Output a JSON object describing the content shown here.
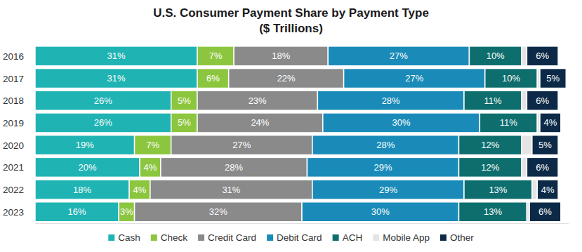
{
  "chart_data": {
    "type": "bar",
    "orientation": "horizontal",
    "stacked": true,
    "data_labels": true,
    "tick_labels": "y",
    "grid": false,
    "title": "U.S. Consumer Payment Share by Payment Type",
    "subtitle": "($ Trillions)",
    "legend": "bottom",
    "xlim": [
      0,
      102
    ],
    "categories": [
      "2016",
      "2017",
      "2018",
      "2019",
      "2020",
      "2021",
      "2022",
      "2023"
    ],
    "series": [
      {
        "name": "Cash",
        "color": "#1fb3b3",
        "values": [
          31,
          31,
          26,
          26,
          19,
          20,
          18,
          16
        ],
        "value_labels": [
          "31%",
          "31%",
          "26%",
          "26%",
          "19%",
          "20%",
          "18%",
          "16%"
        ]
      },
      {
        "name": "Check",
        "color": "#8cc63f",
        "values": [
          7,
          6,
          5,
          5,
          7,
          4,
          4,
          3
        ],
        "value_labels": [
          "7%",
          "6%",
          "5%",
          "5%",
          "7%",
          "4%",
          "4%",
          "3%"
        ]
      },
      {
        "name": "Credit Card",
        "color": "#8a8a8a",
        "values": [
          18,
          22,
          23,
          24,
          27,
          28,
          31,
          32
        ],
        "value_labels": [
          "18%",
          "22%",
          "23%",
          "24%",
          "27%",
          "28%",
          "31%",
          "32%"
        ]
      },
      {
        "name": "Debit Card",
        "color": "#1a8bb9",
        "values": [
          27,
          27,
          28,
          30,
          28,
          29,
          29,
          30
        ],
        "value_labels": [
          "27%",
          "27%",
          "28%",
          "30%",
          "28%",
          "29%",
          "29%",
          "30%"
        ]
      },
      {
        "name": "ACH",
        "color": "#0e6e6e",
        "values": [
          10,
          10,
          11,
          11,
          12,
          12,
          13,
          13
        ],
        "value_labels": [
          "10%",
          "10%",
          "11%",
          "11%",
          "12%",
          "12%",
          "13%",
          "13%"
        ]
      },
      {
        "name": "Mobile App",
        "color": "#e4e4e4",
        "data_labels": false,
        "values": [
          1,
          0.5,
          1,
          0.5,
          2,
          1,
          1,
          0.5
        ]
      },
      {
        "name": "Other",
        "color": "#0c2a48",
        "values": [
          6,
          5,
          6,
          4,
          5,
          6,
          4,
          6
        ],
        "value_labels": [
          "6%",
          "5%",
          "6%",
          "4%",
          "5%",
          "6%",
          "4%",
          "6%"
        ]
      }
    ]
  }
}
